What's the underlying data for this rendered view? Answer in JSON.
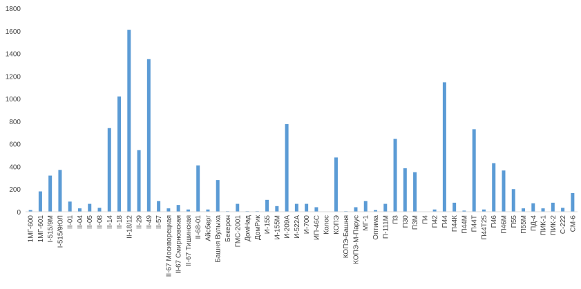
{
  "chart_data": {
    "type": "bar",
    "categories": [
      "1МГ-600",
      "1МГ-601",
      "I-515/9М",
      "I-515/9ЮЛ",
      "II-01",
      "II-04",
      "II-05",
      "II-08",
      "II-14",
      "II-18",
      "II-18/12",
      "II-29",
      "II-49",
      "II-57",
      "II-67 Москворецкая",
      "II-67 Смирновская",
      "II-67 Тишинская",
      "II-68-01",
      "Айсберг",
      "Башня Вулыха",
      "Бекерон",
      "ГМС-2001",
      "ДомНад",
      "ДомРик",
      "И-155",
      "И-155М",
      "И-209А",
      "И-522А",
      "И-700",
      "ИП-46С",
      "Колос",
      "КОПЭ",
      "КОПЭ-Башня",
      "КОПЭ-М-Парус",
      "МГ-1",
      "Оптима",
      "П-111М",
      "П3",
      "П30",
      "П3М",
      "П4",
      "П42",
      "П44",
      "П44К",
      "П44М",
      "П44Т",
      "П44Т25",
      "П46",
      "П46М",
      "П55",
      "П55М",
      "ПД-4",
      "ПИК-1",
      "ПИК-2",
      "С-222",
      "СМ-6"
    ],
    "values": [
      15,
      180,
      320,
      370,
      90,
      30,
      70,
      35,
      740,
      1020,
      1610,
      545,
      1350,
      95,
      30,
      60,
      20,
      410,
      20,
      280,
      5,
      70,
      5,
      5,
      105,
      50,
      775,
      70,
      70,
      40,
      0,
      480,
      5,
      40,
      95,
      15,
      70,
      645,
      385,
      350,
      0,
      20,
      1145,
      80,
      10,
      730,
      20,
      430,
      365,
      200,
      30,
      75,
      30,
      80,
      35,
      165
    ],
    "color": "#5b9bd5",
    "ylim": [
      0,
      1800
    ],
    "yticks": [
      0,
      200,
      400,
      600,
      800,
      1000,
      1200,
      1400,
      1600,
      1800
    ],
    "grid": false
  }
}
